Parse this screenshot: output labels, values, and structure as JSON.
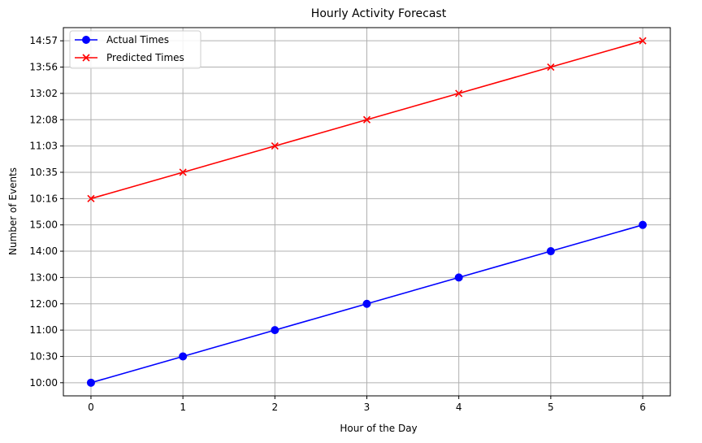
{
  "chart_data": {
    "type": "line",
    "title": "Hourly Activity Forecast",
    "xlabel": "Hour of the Day",
    "ylabel": "Number of Events",
    "x": [
      0,
      1,
      2,
      3,
      4,
      5,
      6
    ],
    "xlim": [
      -0.3,
      6.3
    ],
    "y_categories": [
      "10:00",
      "10:30",
      "11:00",
      "12:00",
      "13:00",
      "14:00",
      "15:00",
      "10:16",
      "10:35",
      "11:03",
      "12:08",
      "13:02",
      "13:56",
      "14:57"
    ],
    "series": [
      {
        "name": "Actual Times",
        "values": [
          "10:00",
          "10:30",
          "11:00",
          "12:00",
          "13:00",
          "14:00",
          "15:00"
        ],
        "color": "#0000ff",
        "marker": "circle"
      },
      {
        "name": "Predicted Times",
        "values": [
          "10:16",
          "10:35",
          "11:03",
          "12:08",
          "13:02",
          "13:56",
          "14:57"
        ],
        "color": "#ff0000",
        "marker": "x"
      }
    ],
    "grid": true,
    "legend": "top-left"
  }
}
